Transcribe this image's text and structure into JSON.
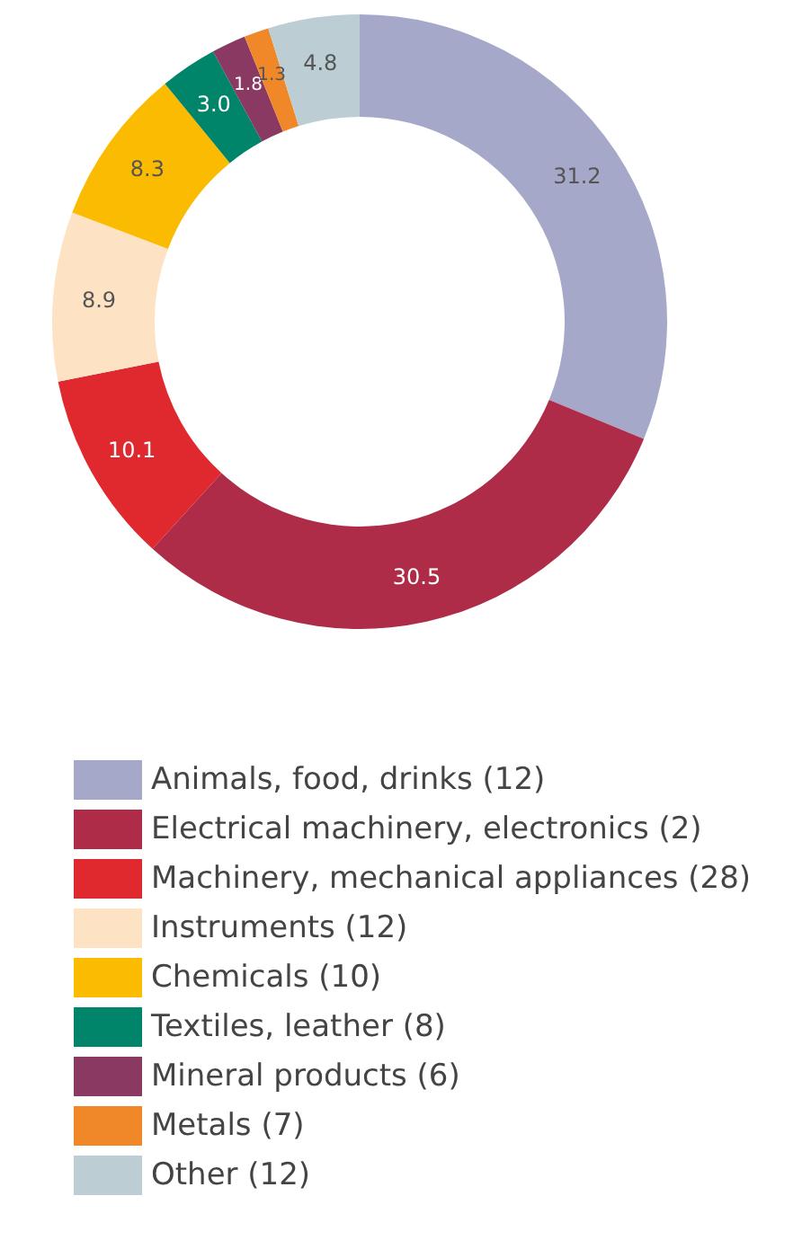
{
  "chart_data": {
    "type": "donut",
    "categories": [
      "Animals, food, drinks (12)",
      "Electrical machinery, electronics (2)",
      "Machinery, mechanical appliances (28)",
      "Instruments (12)",
      "Chemicals (10)",
      "Textiles, leather (8)",
      "Mineral products (6)",
      "Metals (7)",
      "Other (12)"
    ],
    "values": [
      31.2,
      30.5,
      10.1,
      8.9,
      8.3,
      3.0,
      1.8,
      1.3,
      4.8
    ],
    "colors": [
      "#a5a8c9",
      "#ae2c47",
      "#e0292e",
      "#fde2c4",
      "#fbbb00",
      "#00856a",
      "#8a3a62",
      "#f0882a",
      "#bccdd4"
    ],
    "value_labels": [
      "31.2",
      "30.5",
      "10.1",
      "8.9",
      "8.3",
      "3.0",
      "1.8",
      "1.3",
      "4.8"
    ],
    "legend": "bottom"
  }
}
